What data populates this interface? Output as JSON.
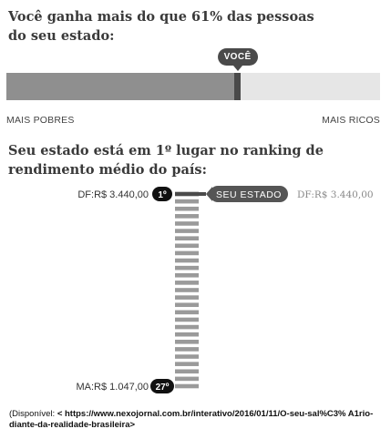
{
  "header": {
    "title_line1": "Você ganha mais do que 61% das pessoas",
    "title_line2": "do seu estado:"
  },
  "percentile": {
    "value_percent": 61,
    "badge_label": "VOCÊ",
    "left_label": "MAIS POBRES",
    "right_label": "MAIS RICOS"
  },
  "ranking": {
    "title_line1": "Seu estado está em 1º lugar no ranking de",
    "title_line2": "rendimento médio do país:",
    "your_state_label": "SEU ESTADO",
    "your_state_value": "DF:R$ 3.440,00",
    "top_label": "DF:R$ 3.440,00",
    "top_rank": "1º",
    "bottom_label": "MA:R$ 1.047,00",
    "bottom_rank": "27º"
  },
  "chart_data": {
    "type": "bar",
    "total_ranks": 27,
    "highlight_rank": 1,
    "top": {
      "state": "DF",
      "value": 3440.0,
      "rank": 1
    },
    "bottom": {
      "state": "MA",
      "value": 1047.0,
      "rank": 27
    }
  },
  "colors": {
    "bar_dark": "#4a4a4a",
    "bar_fill": "#8f8f8f",
    "bar_empty": "#e6e6e6",
    "stripe": "#9a9a9a",
    "badge_black": "#111111"
  },
  "source": {
    "prefix": "(Disponível: ",
    "link": "< https://www.nexojornal.com.br/interativo/2016/01/11/O-seu-sal%C3% A1rio-diante-da-realidade-brasileira>"
  }
}
